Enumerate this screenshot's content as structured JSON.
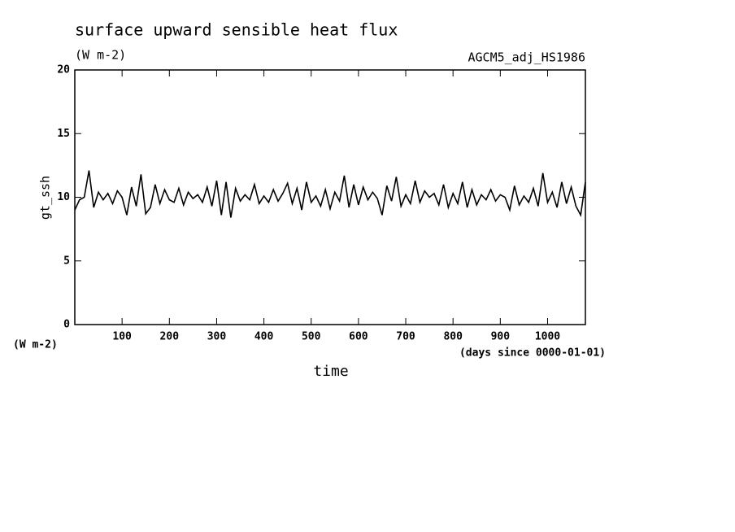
{
  "chart_data": {
    "type": "line",
    "title": "surface upward sensible heat flux",
    "subtitle": "(W m-2)",
    "annotation": "AGCM5_adj_HS1986",
    "ylabel": "gt_ssh",
    "y_unit": "(W m-2)",
    "xlabel": "time",
    "x_unit": "(days since 0000-01-01)",
    "x": [
      0,
      10,
      20,
      30,
      40,
      50,
      60,
      70,
      80,
      90,
      100,
      110,
      120,
      130,
      140,
      150,
      160,
      170,
      180,
      190,
      200,
      210,
      220,
      230,
      240,
      250,
      260,
      270,
      280,
      290,
      300,
      310,
      320,
      330,
      340,
      350,
      360,
      370,
      380,
      390,
      400,
      410,
      420,
      430,
      440,
      450,
      460,
      470,
      480,
      490,
      500,
      510,
      520,
      530,
      540,
      550,
      560,
      570,
      580,
      590,
      600,
      610,
      620,
      630,
      640,
      650,
      660,
      670,
      680,
      690,
      700,
      710,
      720,
      730,
      740,
      750,
      760,
      770,
      780,
      790,
      800,
      810,
      820,
      830,
      840,
      850,
      860,
      870,
      880,
      890,
      900,
      910,
      920,
      930,
      940,
      950,
      960,
      970,
      980,
      990,
      1000,
      1010,
      1020,
      1030,
      1040,
      1050,
      1060,
      1070,
      1080
    ],
    "series": [
      {
        "name": "gt_ssh",
        "color": "#000000",
        "values": [
          9.0,
          9.8,
          10.0,
          12.1,
          9.2,
          10.4,
          9.8,
          10.3,
          9.5,
          10.5,
          10.0,
          8.6,
          10.8,
          9.3,
          11.8,
          8.7,
          9.2,
          11.0,
          9.5,
          10.6,
          9.8,
          9.6,
          10.7,
          9.4,
          10.4,
          9.9,
          10.2,
          9.6,
          10.8,
          9.3,
          11.3,
          8.6,
          11.2,
          8.4,
          10.7,
          9.7,
          10.2,
          9.8,
          11.0,
          9.5,
          10.1,
          9.6,
          10.6,
          9.7,
          10.3,
          11.1,
          9.5,
          10.7,
          9.0,
          11.2,
          9.6,
          10.1,
          9.3,
          10.6,
          9.1,
          10.4,
          9.7,
          11.7,
          9.2,
          11.0,
          9.4,
          10.8,
          9.8,
          10.4,
          9.9,
          8.6,
          10.9,
          9.7,
          11.6,
          9.3,
          10.2,
          9.5,
          11.3,
          9.6,
          10.5,
          10.0,
          10.3,
          9.4,
          11.0,
          9.2,
          10.3,
          9.5,
          11.2,
          9.2,
          10.6,
          9.4,
          10.2,
          9.8,
          10.6,
          9.7,
          10.2,
          10.0,
          9.0,
          10.9,
          9.4,
          10.1,
          9.6,
          10.7,
          9.3,
          11.9,
          9.6,
          10.4,
          9.2,
          11.2,
          9.5,
          10.8,
          9.3,
          8.6,
          11.2
        ]
      }
    ],
    "xlim": [
      0,
      1080
    ],
    "ylim": [
      0,
      20
    ],
    "xticks": [
      100,
      200,
      300,
      400,
      500,
      600,
      700,
      800,
      900,
      1000
    ],
    "yticks": [
      0,
      5,
      10,
      15,
      20
    ]
  }
}
